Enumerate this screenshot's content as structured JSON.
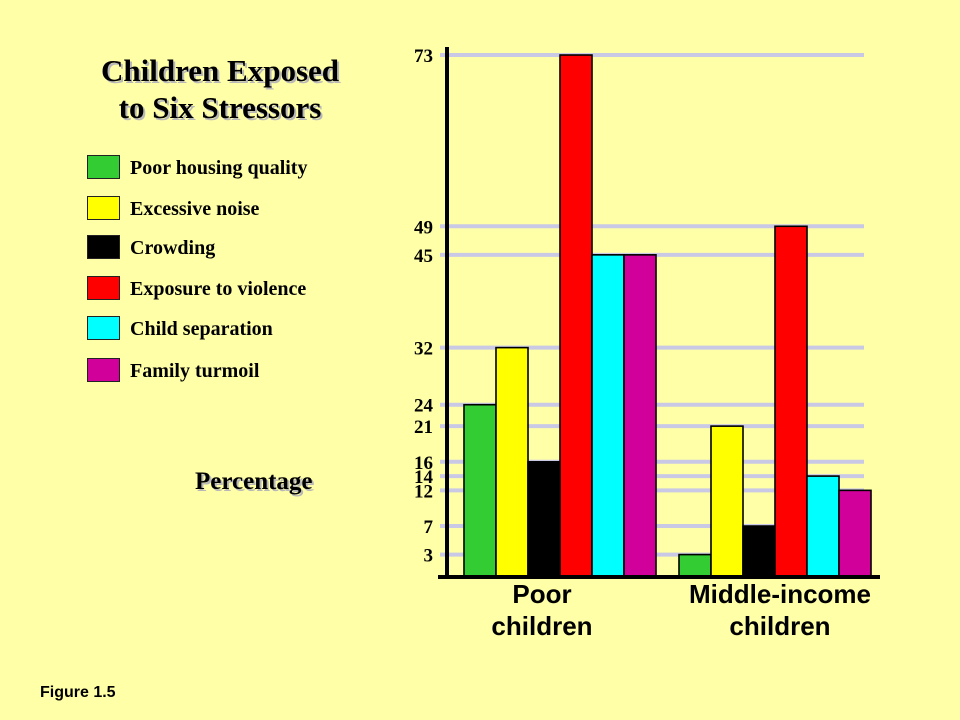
{
  "figure_label": "Figure 1.5",
  "chart_data": {
    "type": "bar",
    "title_lines": [
      "Children Exposed",
      "to Six Stressors"
    ],
    "ylabel": "Percentage",
    "xlabel": "",
    "ylim": [
      0,
      73
    ],
    "y_ticks": [
      3,
      7,
      12,
      14,
      16,
      21,
      24,
      32,
      45,
      49,
      73
    ],
    "grid": true,
    "categories": [
      {
        "lines": [
          "Poor",
          "children"
        ]
      },
      {
        "lines": [
          "Middle-income",
          "children"
        ]
      }
    ],
    "series": [
      {
        "name": "Poor housing quality",
        "color": "#33cc33",
        "values": [
          24,
          3
        ]
      },
      {
        "name": "Excessive noise",
        "color": "#ffff00",
        "values": [
          32,
          21
        ]
      },
      {
        "name": "Crowding",
        "color": "#000000",
        "values": [
          16,
          7
        ]
      },
      {
        "name": "Exposure to violence",
        "color": "#ff0000",
        "values": [
          73,
          49
        ]
      },
      {
        "name": "Child separation",
        "color": "#00ffff",
        "values": [
          45,
          14
        ]
      },
      {
        "name": "Family turmoil",
        "color": "#d1009a",
        "values": [
          45,
          12
        ]
      }
    ],
    "legend_position": "left"
  }
}
